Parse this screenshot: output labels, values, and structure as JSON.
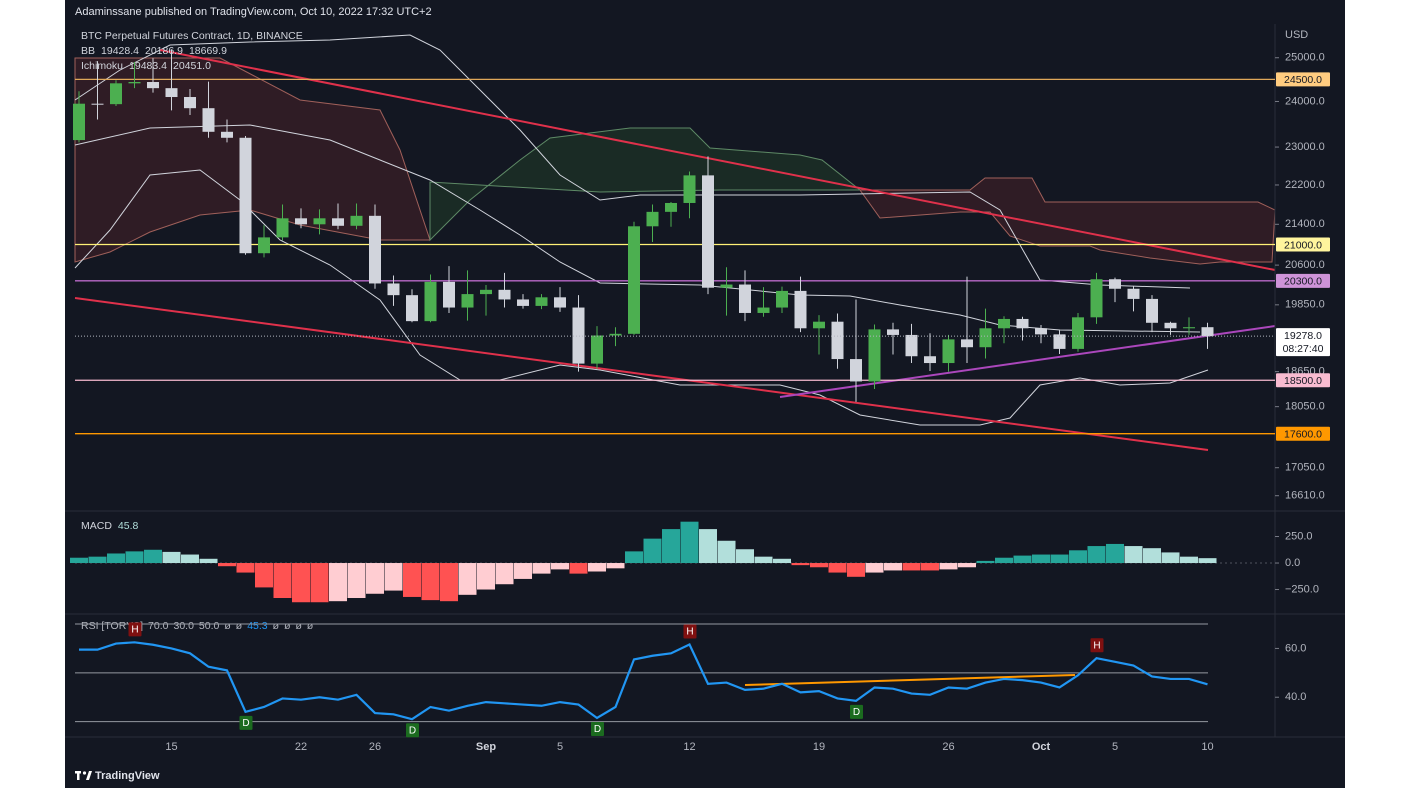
{
  "header": {
    "title": "Adaminssane published on TradingView.com, Oct 10, 2022 17:32 UTC+2"
  },
  "footer": {
    "brand": "TradingView"
  },
  "chart_data": [
    {
      "type": "candlestick",
      "title": "BTC Perpetual Futures Contract, 1D, BINANCE",
      "currency": "USD",
      "legend": [
        {
          "name": "BB",
          "readouts": [
            "19428.4",
            "20186.9",
            "18669.9"
          ]
        },
        {
          "name": "Ichimoku",
          "readouts": [
            "19483.4",
            "20451.0"
          ]
        }
      ],
      "log_scale": true,
      "grid": false,
      "up_color": "#4caf50",
      "down_color": "#d1d4dc",
      "ylim": [
        16390,
        25800
      ],
      "yticks": [
        {
          "value": 25000,
          "label": "25000.0"
        },
        {
          "value": 24000,
          "label": "24000.0"
        },
        {
          "value": 23000,
          "label": "23000.0"
        },
        {
          "value": 22200,
          "label": "22200.0"
        },
        {
          "value": 21400,
          "label": "21400.0"
        },
        {
          "value": 20600,
          "label": "20600.0"
        },
        {
          "value": 19850,
          "label": "19850.0"
        },
        {
          "value": 18650,
          "label": "18650.0"
        },
        {
          "value": 18050,
          "label": "18050.0"
        },
        {
          "value": 17050,
          "label": "17050.0"
        },
        {
          "value": 16610,
          "label": "16610.0"
        }
      ],
      "levels": [
        {
          "value": 24500,
          "label": "24500.0",
          "color": "#e0a85a",
          "label_color": "#ffcc80"
        },
        {
          "value": 21000,
          "label": "21000.0",
          "color": "#fff176",
          "label_color": "#fff59d"
        },
        {
          "value": 20300,
          "label": "20300.0",
          "color": "#ba68c8",
          "label_color": "#ce93d8"
        },
        {
          "value": 18500,
          "label": "18500.0",
          "color": "#f8bbd0",
          "label_color": "#f8bbd0"
        },
        {
          "value": 17600,
          "label": "17600.0",
          "color": "#ff9800",
          "label_color": "#ff9800"
        }
      ],
      "last_price": {
        "value": 19278,
        "label": "19278.0"
      },
      "countdown": "08:27:40",
      "open": [
        23150,
        23950,
        23940,
        24410,
        24440,
        24300,
        24100,
        23850,
        23330,
        23200,
        20830,
        21140,
        21520,
        21400,
        21520,
        21370,
        21570,
        20250,
        20030,
        19550,
        20280,
        19800,
        20050,
        20130,
        19950,
        19830,
        19990,
        19800,
        18790,
        19290,
        19320,
        21360,
        21650,
        21830,
        22400,
        20170,
        20230,
        19700,
        19800,
        20110,
        19420,
        19540,
        18870,
        18480,
        19400,
        19300,
        18920,
        18800,
        19220,
        19080,
        19420,
        19590,
        19420,
        19310,
        19050,
        19620,
        20330,
        20150,
        19960,
        19520,
        19420,
        19440
      ],
      "high": [
        24230,
        24920,
        24480,
        24900,
        24990,
        25200,
        24280,
        24450,
        23600,
        23240,
        21380,
        21800,
        21720,
        21700,
        21820,
        21820,
        21800,
        20400,
        20140,
        20420,
        20580,
        20500,
        20220,
        20450,
        20050,
        20050,
        20180,
        20030,
        19460,
        19440,
        21450,
        21800,
        21850,
        22480,
        22800,
        20560,
        20500,
        20180,
        20190,
        20380,
        19660,
        19690,
        19950,
        19490,
        19520,
        19500,
        19330,
        19300,
        20380,
        19780,
        19640,
        19630,
        19480,
        19380,
        19700,
        20450,
        20360,
        20200,
        20030,
        19540,
        19620,
        19520
      ],
      "low": [
        23100,
        23600,
        23900,
        24300,
        24200,
        23800,
        23700,
        23200,
        23100,
        20800,
        20750,
        21080,
        21320,
        21200,
        21300,
        21300,
        20150,
        19830,
        19530,
        19530,
        19700,
        19560,
        19650,
        19800,
        19780,
        19770,
        19720,
        18650,
        18700,
        19100,
        19300,
        21050,
        21350,
        21520,
        20050,
        19650,
        19550,
        19630,
        19700,
        19350,
        18950,
        18700,
        18130,
        18350,
        18950,
        18800,
        18660,
        18650,
        18800,
        18880,
        19150,
        19200,
        19150,
        18960,
        19000,
        19500,
        19900,
        19730,
        19350,
        19300,
        19300,
        19050
      ],
      "close": [
        23950,
        23940,
        24410,
        24440,
        24300,
        24100,
        23850,
        23330,
        23200,
        20830,
        21140,
        21520,
        21400,
        21520,
        21370,
        21570,
        20250,
        20030,
        19550,
        20280,
        19800,
        20050,
        20130,
        19950,
        19830,
        19990,
        19800,
        18790,
        19290,
        19320,
        21360,
        21650,
        21830,
        22400,
        20170,
        20230,
        19700,
        19800,
        20110,
        19420,
        19540,
        18870,
        18480,
        19400,
        19300,
        18920,
        18800,
        19220,
        19080,
        19420,
        19590,
        19420,
        19310,
        19050,
        19620,
        20330,
        20150,
        19960,
        19520,
        19420,
        19440,
        19278
      ]
    },
    {
      "type": "bar",
      "title": "MACD",
      "current": 45.8,
      "current_label": "45.8",
      "colors": [
        "#26a69a",
        "#b2dfdb",
        "#ff5252",
        "#ffcdd2"
      ],
      "ylim": [
        -462,
        453
      ],
      "yticks": [
        {
          "value": 250,
          "label": "250.0"
        },
        {
          "value": 0,
          "label": "0.0"
        },
        {
          "value": -250,
          "label": "−250.0"
        }
      ],
      "values": [
        50,
        60,
        90,
        110,
        125,
        105,
        80,
        40,
        -30,
        -90,
        -230,
        -330,
        -370,
        -370,
        -360,
        -330,
        -290,
        -260,
        -320,
        -350,
        -360,
        -300,
        -250,
        -200,
        -150,
        -100,
        -60,
        -100,
        -80,
        -50,
        110,
        230,
        320,
        390,
        320,
        210,
        130,
        60,
        40,
        -20,
        -40,
        -90,
        -130,
        -90,
        -70,
        -70,
        -70,
        -60,
        -40,
        20,
        50,
        70,
        80,
        80,
        120,
        160,
        180,
        160,
        140,
        100,
        60,
        45.8
      ]
    },
    {
      "type": "line",
      "legend": [
        "RSI [TORYS]",
        "70.0",
        "30.0",
        "50.0",
        "ø",
        "ø",
        "45.3",
        "ø",
        "ø",
        "ø",
        "ø"
      ],
      "color": "#2196f3",
      "bands": [
        70,
        50,
        30
      ],
      "ylim": [
        23.7,
        73.7
      ],
      "yticks": [
        {
          "value": 60,
          "label": "60.0"
        },
        {
          "value": 40,
          "label": "40.0"
        }
      ],
      "categories": [
        null,
        null,
        null,
        null,
        null,
        "15",
        null,
        null,
        null,
        null,
        null,
        null,
        "22",
        null,
        null,
        null,
        "26",
        null,
        null,
        null,
        null,
        null,
        "Sep",
        null,
        null,
        null,
        "5",
        null,
        null,
        null,
        null,
        null,
        null,
        "12",
        null,
        null,
        null,
        null,
        null,
        null,
        "19",
        null,
        null,
        null,
        null,
        null,
        null,
        "26",
        null,
        null,
        null,
        null,
        "Oct",
        null,
        null,
        null,
        "5",
        null,
        null,
        null,
        null,
        "10"
      ],
      "values": [
        59.5,
        59.5,
        62,
        62.5,
        61.5,
        60,
        58,
        52.5,
        51,
        34,
        36,
        39.5,
        39,
        40,
        39,
        41,
        33.5,
        33,
        31,
        36,
        34.5,
        36.5,
        38,
        37.5,
        37,
        36.5,
        38,
        37,
        31.5,
        36,
        55.5,
        57,
        58,
        61.6,
        45.5,
        46,
        43,
        43.5,
        45.5,
        42,
        42.5,
        39.5,
        38.5,
        44,
        43.5,
        41.5,
        41,
        44,
        43.5,
        46,
        47.5,
        47,
        46,
        44,
        49,
        56,
        54.5,
        53,
        48.5,
        47.5,
        47.5,
        45.3
      ],
      "markers": [
        null,
        null,
        null,
        "H",
        null,
        null,
        null,
        null,
        null,
        "D",
        null,
        null,
        null,
        null,
        null,
        null,
        null,
        null,
        "D",
        null,
        null,
        null,
        null,
        null,
        null,
        null,
        null,
        null,
        "D",
        null,
        null,
        null,
        null,
        "H",
        null,
        null,
        null,
        null,
        null,
        null,
        null,
        null,
        "D",
        null,
        null,
        null,
        null,
        null,
        null,
        null,
        null,
        null,
        null,
        null,
        null,
        "H",
        null,
        null,
        null,
        null,
        null,
        null
      ]
    }
  ]
}
